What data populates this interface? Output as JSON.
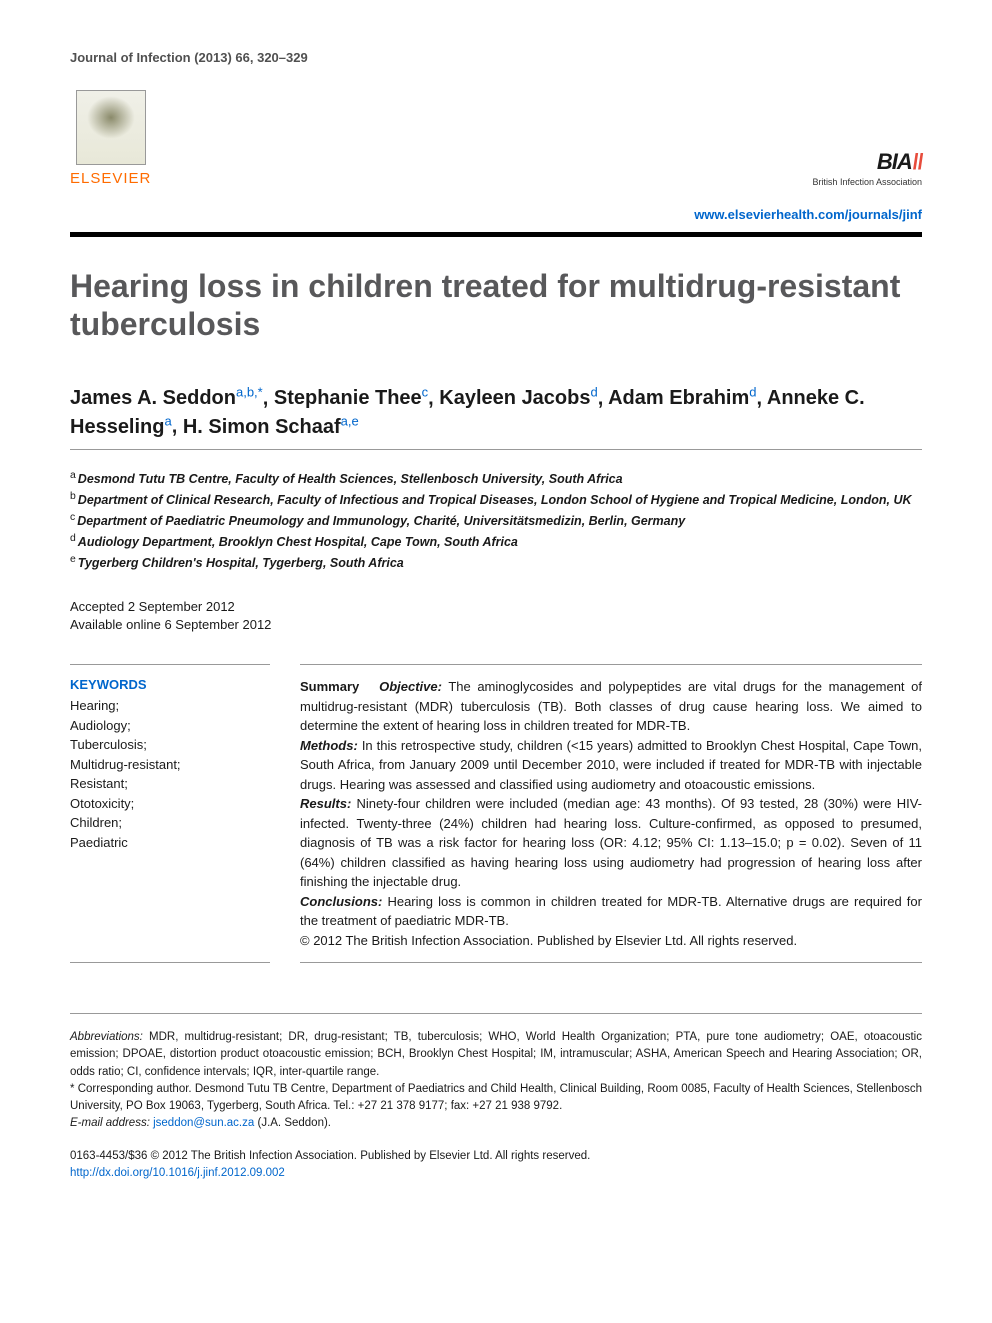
{
  "citation": "Journal of Infection (2013) 66, 320–329",
  "publisher": {
    "name": "ELSEVIER",
    "name_color": "#ff6b00"
  },
  "association": {
    "mark": "BIA",
    "subtitle": "British Infection Association"
  },
  "journal_url": "www.elsevierhealth.com/journals/jinf",
  "title": "Hearing loss in children treated for multidrug-resistant tuberculosis",
  "authors": [
    {
      "name": "James A. Seddon",
      "affil": "a,b,*"
    },
    {
      "name": "Stephanie Thee",
      "affil": "c"
    },
    {
      "name": "Kayleen Jacobs",
      "affil": "d"
    },
    {
      "name": "Adam Ebrahim",
      "affil": "d"
    },
    {
      "name": "Anneke C. Hesseling",
      "affil": "a"
    },
    {
      "name": "H. Simon Schaaf",
      "affil": "a,e"
    }
  ],
  "affiliations": [
    {
      "key": "a",
      "text": "Desmond Tutu TB Centre, Faculty of Health Sciences, Stellenbosch University, South Africa"
    },
    {
      "key": "b",
      "text": "Department of Clinical Research, Faculty of Infectious and Tropical Diseases, London School of Hygiene and Tropical Medicine, London, UK"
    },
    {
      "key": "c",
      "text": "Department of Paediatric Pneumology and Immunology, Charité, Universitätsmedizin, Berlin, Germany"
    },
    {
      "key": "d",
      "text": "Audiology Department, Brooklyn Chest Hospital, Cape Town, South Africa"
    },
    {
      "key": "e",
      "text": "Tygerberg Children's Hospital, Tygerberg, South Africa"
    }
  ],
  "dates": {
    "accepted": "Accepted 2 September 2012",
    "online": "Available online 6 September 2012"
  },
  "keywords": {
    "heading": "KEYWORDS",
    "items": [
      "Hearing;",
      "Audiology;",
      "Tuberculosis;",
      "Multidrug-resistant;",
      "Resistant;",
      "Ototoxicity;",
      "Children;",
      "Paediatric"
    ]
  },
  "summary": {
    "label": "Summary",
    "sections": {
      "objective": {
        "label": "Objective:",
        "text": "The aminoglycosides and polypeptides are vital drugs for the management of multidrug-resistant (MDR) tuberculosis (TB). Both classes of drug cause hearing loss. We aimed to determine the extent of hearing loss in children treated for MDR-TB."
      },
      "methods": {
        "label": "Methods:",
        "text": "In this retrospective study, children (<15 years) admitted to Brooklyn Chest Hospital, Cape Town, South Africa, from January 2009 until December 2010, were included if treated for MDR-TB with injectable drugs. Hearing was assessed and classified using audiometry and otoacoustic emissions."
      },
      "results": {
        "label": "Results:",
        "text": "Ninety-four children were included (median age: 43 months). Of 93 tested, 28 (30%) were HIV-infected. Twenty-three (24%) children had hearing loss. Culture-confirmed, as opposed to presumed, diagnosis of TB was a risk factor for hearing loss (OR: 4.12; 95% CI: 1.13–15.0; p = 0.02). Seven of 11 (64%) children classified as having hearing loss using audiometry had progression of hearing loss after finishing the injectable drug."
      },
      "conclusions": {
        "label": "Conclusions:",
        "text": "Hearing loss is common in children treated for MDR-TB. Alternative drugs are required for the treatment of paediatric MDR-TB."
      }
    },
    "copyright": "© 2012 The British Infection Association. Published by Elsevier Ltd. All rights reserved."
  },
  "footer": {
    "abbreviations_label": "Abbreviations:",
    "abbreviations": "MDR, multidrug-resistant; DR, drug-resistant; TB, tuberculosis; WHO, World Health Organization; PTA, pure tone audiometry; OAE, otoacoustic emission; DPOAE, distortion product otoacoustic emission; BCH, Brooklyn Chest Hospital; IM, intramuscular; ASHA, American Speech and Hearing Association; OR, odds ratio; CI, confidence intervals; IQR, inter-quartile range.",
    "corresponding": "* Corresponding author. Desmond Tutu TB Centre, Department of Paediatrics and Child Health, Clinical Building, Room 0085, Faculty of Health Sciences, Stellenbosch University, PO Box 19063, Tygerberg, South Africa. Tel.: +27 21 378 9177; fax: +27 21 938 9792.",
    "email_label": "E-mail address:",
    "email": "jseddon@sun.ac.za",
    "email_attribution": "(J.A. Seddon).",
    "copyright_line": "0163-4453/$36 © 2012 The British Infection Association. Published by Elsevier Ltd. All rights reserved.",
    "doi": "http://dx.doi.org/10.1016/j.jinf.2012.09.002"
  },
  "colors": {
    "title_gray": "#58585a",
    "link_blue": "#0066cc",
    "elsevier_orange": "#ff6b00",
    "text": "#1a1a1a",
    "rule": "#999999"
  },
  "typography": {
    "title_fontsize": 32,
    "author_fontsize": 20,
    "body_fontsize": 13,
    "footer_fontsize": 11.5
  }
}
